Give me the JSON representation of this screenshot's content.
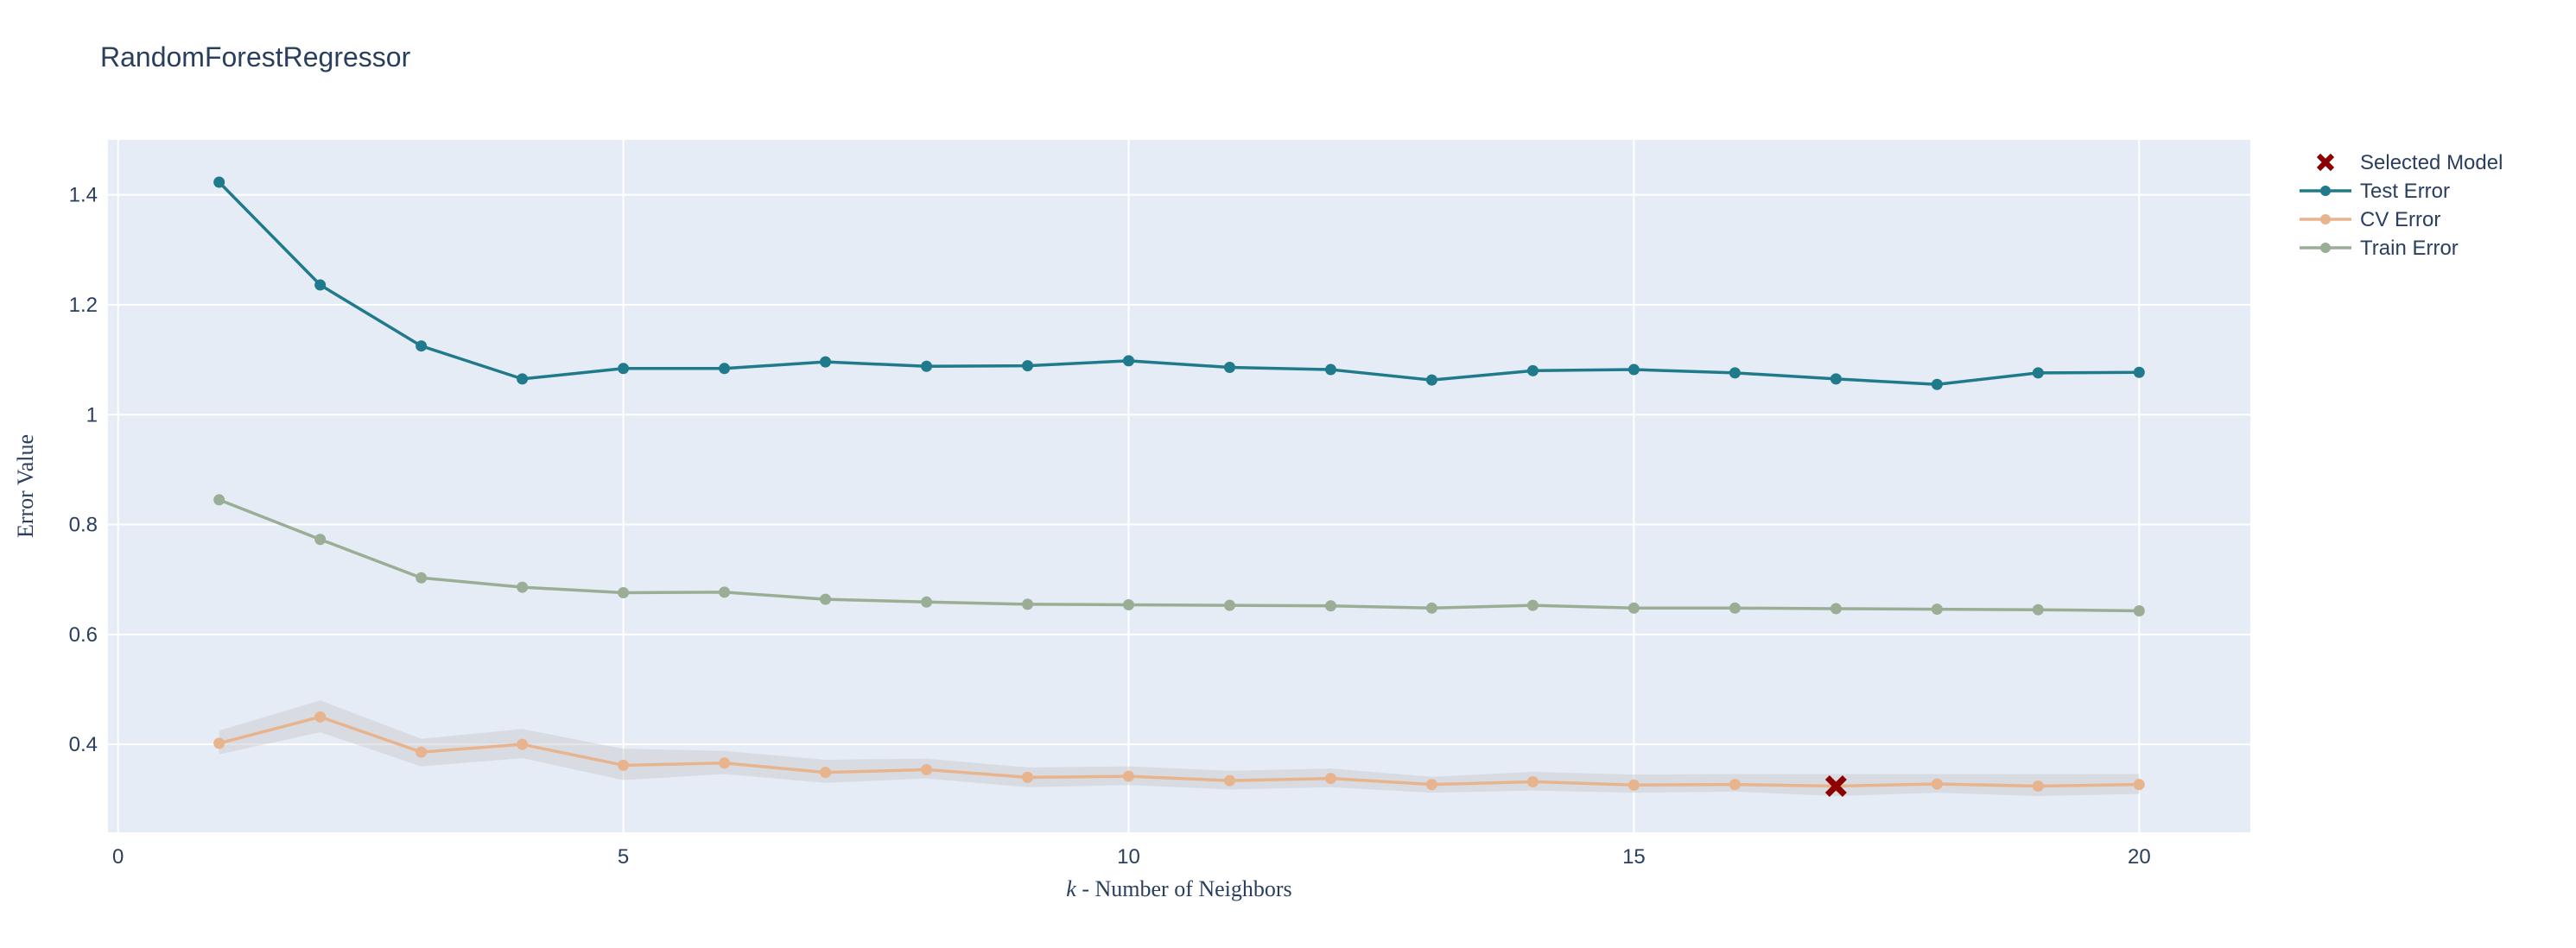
{
  "chart_data": {
    "type": "line",
    "title": "RandomForestRegressor",
    "xlabel_italic": "k",
    "xlabel_rest": " - Number of Neighbors",
    "ylabel": "Error Value",
    "xlim": [
      -0.1,
      21.1
    ],
    "ylim": [
      0.24,
      1.5
    ],
    "xticks": [
      0,
      5,
      10,
      15,
      20
    ],
    "yticks": [
      0.4,
      0.6,
      0.8,
      1,
      1.2,
      1.4
    ],
    "ytick_labels": [
      "0.4",
      "0.6",
      "0.8",
      "1",
      "1.2",
      "1.4"
    ],
    "grid": true,
    "legend_position": "top-right, outside plot",
    "x": [
      1,
      2,
      3,
      4,
      5,
      6,
      7,
      8,
      9,
      10,
      11,
      12,
      13,
      14,
      15,
      16,
      17,
      18,
      19,
      20
    ],
    "series": [
      {
        "name": "Test Error",
        "color": "#1f7a8c",
        "values": [
          1.423,
          1.236,
          1.125,
          1.065,
          1.084,
          1.084,
          1.096,
          1.088,
          1.089,
          1.098,
          1.086,
          1.082,
          1.063,
          1.08,
          1.082,
          1.076,
          1.065,
          1.055,
          1.076,
          1.077
        ]
      },
      {
        "name": "CV Error",
        "color": "#e8b48e",
        "values": [
          0.402,
          0.45,
          0.386,
          0.4,
          0.362,
          0.366,
          0.349,
          0.354,
          0.34,
          0.342,
          0.334,
          0.338,
          0.327,
          0.332,
          0.326,
          0.327,
          0.324,
          0.328,
          0.324,
          0.327
        ],
        "band_upper": [
          0.425,
          0.48,
          0.41,
          0.428,
          0.392,
          0.388,
          0.372,
          0.374,
          0.358,
          0.36,
          0.352,
          0.356,
          0.341,
          0.35,
          0.345,
          0.346,
          0.346,
          0.346,
          0.346,
          0.346
        ],
        "band_lower": [
          0.382,
          0.422,
          0.36,
          0.375,
          0.335,
          0.346,
          0.33,
          0.338,
          0.322,
          0.326,
          0.318,
          0.322,
          0.312,
          0.316,
          0.312,
          0.314,
          0.306,
          0.312,
          0.306,
          0.31
        ],
        "band_color": "#c8c8c8"
      },
      {
        "name": "Train Error",
        "color": "#9aae96",
        "values": [
          0.845,
          0.773,
          0.703,
          0.686,
          0.676,
          0.677,
          0.664,
          0.659,
          0.655,
          0.654,
          0.653,
          0.652,
          0.648,
          0.653,
          0.648,
          0.648,
          0.647,
          0.646,
          0.645,
          0.643
        ]
      }
    ],
    "selected_model": {
      "name": "Selected Model",
      "x": 17,
      "y": 0.324,
      "color": "#8b0000",
      "symbol": "x-icon"
    },
    "legend": [
      "Selected Model",
      "Test Error",
      "CV Error",
      "Train Error"
    ],
    "plot_bg": "#e5ecf6",
    "grid_color": "#ffffff"
  }
}
